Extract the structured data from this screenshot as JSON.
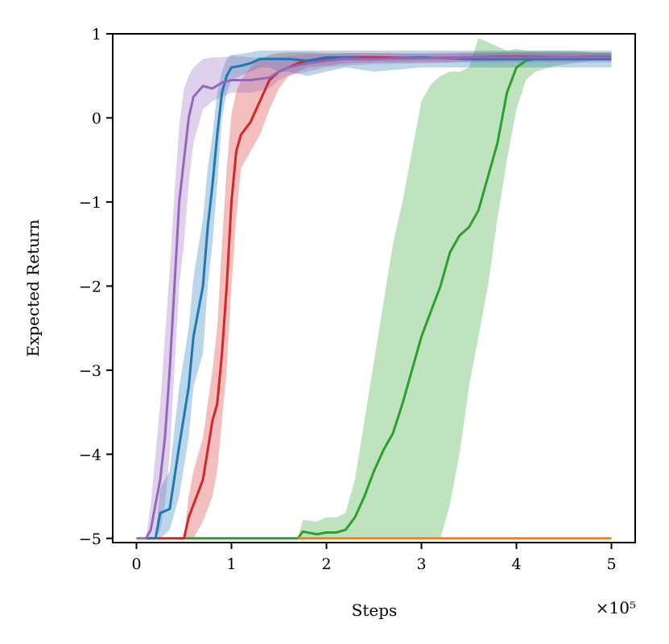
{
  "chart_data": {
    "type": "line",
    "title": "",
    "xlabel": "Steps",
    "ylabel": "Expected Return",
    "x_multiplier_label": "×10⁵",
    "xlim": [
      -0.25,
      5.25
    ],
    "ylim": [
      -5.05,
      1.0
    ],
    "xticks": [
      0,
      1,
      2,
      3,
      4,
      5
    ],
    "xtick_labels": [
      "0",
      "1",
      "2",
      "3",
      "4",
      "5"
    ],
    "yticks": [
      -5,
      -4,
      -3,
      -2,
      -1,
      0,
      1
    ],
    "ytick_labels": [
      "−5",
      "−4",
      "−3",
      "−2",
      "−1",
      "0",
      "1"
    ],
    "grid": false,
    "series": [
      {
        "color": "#2ca02c",
        "x": [
          0.45,
          1.0,
          1.5,
          1.7,
          1.75,
          1.9,
          2.0,
          2.1,
          2.2,
          2.3,
          2.4,
          2.5,
          2.6,
          2.7,
          2.8,
          2.9,
          3.0,
          3.1,
          3.2,
          3.3,
          3.4,
          3.5,
          3.6,
          3.7,
          3.8,
          3.9,
          4.0,
          4.1,
          4.2,
          4.4,
          4.6,
          4.8,
          5.0
        ],
        "y": [
          -5.0,
          -5.0,
          -5.0,
          -5.0,
          -4.92,
          -4.95,
          -4.93,
          -4.93,
          -4.9,
          -4.75,
          -4.5,
          -4.2,
          -3.95,
          -3.75,
          -3.4,
          -3.0,
          -2.6,
          -2.3,
          -2.0,
          -1.6,
          -1.4,
          -1.3,
          -1.1,
          -0.7,
          -0.3,
          0.3,
          0.6,
          0.68,
          0.7,
          0.72,
          0.72,
          0.73,
          0.73
        ],
        "lower": [
          -5.0,
          -5.0,
          -5.0,
          -5.0,
          -5.0,
          -5.0,
          -5.0,
          -5.0,
          -5.0,
          -5.0,
          -5.0,
          -5.0,
          -5.0,
          -5.0,
          -5.0,
          -5.0,
          -5.0,
          -5.0,
          -5.0,
          -4.6,
          -4.0,
          -3.2,
          -2.6,
          -2.0,
          -1.2,
          -0.5,
          0.1,
          0.45,
          0.55,
          0.62,
          0.65,
          0.68,
          0.68
        ],
        "upper": [
          -5.0,
          -5.0,
          -5.0,
          -5.0,
          -4.78,
          -4.8,
          -4.75,
          -4.75,
          -4.7,
          -4.3,
          -3.6,
          -2.9,
          -2.2,
          -1.5,
          -1.0,
          -0.4,
          0.2,
          0.4,
          0.5,
          0.55,
          0.55,
          0.6,
          0.95,
          0.9,
          0.85,
          0.8,
          0.82,
          0.8,
          0.8,
          0.8,
          0.8,
          0.78,
          0.78
        ]
      },
      {
        "color": "#ff7f0e",
        "x": [
          1.7,
          2.5,
          3.0,
          4.0,
          5.0
        ],
        "y": [
          -5.0,
          -5.0,
          -5.0,
          -5.0,
          -5.0
        ],
        "lower": [
          -5.0,
          -5.0,
          -5.0,
          -5.0,
          -5.0
        ],
        "upper": [
          -5.0,
          -5.0,
          -5.0,
          -5.0,
          -5.0
        ]
      },
      {
        "color": "#d62728",
        "x": [
          0.1,
          0.4,
          0.5,
          0.55,
          0.6,
          0.7,
          0.8,
          0.85,
          0.9,
          0.95,
          1.0,
          1.05,
          1.1,
          1.2,
          1.3,
          1.4,
          1.5,
          1.6,
          1.7,
          1.8,
          2.0,
          2.2,
          2.5,
          3.0,
          3.5,
          4.0,
          4.5,
          5.0
        ],
        "y": [
          -5.0,
          -5.0,
          -5.0,
          -4.75,
          -4.6,
          -4.3,
          -3.6,
          -3.4,
          -2.8,
          -2.0,
          -1.0,
          -0.4,
          -0.2,
          -0.05,
          0.2,
          0.45,
          0.55,
          0.6,
          0.65,
          0.68,
          0.7,
          0.72,
          0.72,
          0.71,
          0.72,
          0.73,
          0.72,
          0.72
        ],
        "lower": [
          -5.0,
          -5.0,
          -5.0,
          -5.0,
          -5.0,
          -4.8,
          -4.5,
          -4.2,
          -3.6,
          -3.0,
          -2.0,
          -1.2,
          -0.6,
          -0.4,
          -0.2,
          0.1,
          0.35,
          0.5,
          0.55,
          0.6,
          0.62,
          0.65,
          0.66,
          0.66,
          0.67,
          0.68,
          0.68,
          0.68
        ],
        "upper": [
          -5.0,
          -5.0,
          -5.0,
          -4.5,
          -4.2,
          -3.8,
          -3.0,
          -2.5,
          -1.5,
          -0.6,
          0.05,
          0.3,
          0.45,
          0.6,
          0.7,
          0.75,
          0.77,
          0.78,
          0.78,
          0.78,
          0.77,
          0.77,
          0.77,
          0.76,
          0.77,
          0.78,
          0.77,
          0.77
        ]
      },
      {
        "color": "#1f77b4",
        "x": [
          0.1,
          0.2,
          0.25,
          0.35,
          0.45,
          0.55,
          0.6,
          0.7,
          0.75,
          0.8,
          0.85,
          0.9,
          0.95,
          1.0,
          1.1,
          1.2,
          1.3,
          1.4,
          1.5,
          1.6,
          1.8,
          2.0,
          2.2,
          2.5,
          3.0,
          3.5,
          4.0,
          4.5,
          5.0
        ],
        "y": [
          -5.0,
          -5.0,
          -4.7,
          -4.65,
          -3.9,
          -3.2,
          -2.6,
          -2.0,
          -1.3,
          -0.8,
          -0.2,
          0.3,
          0.5,
          0.6,
          0.62,
          0.65,
          0.7,
          0.7,
          0.7,
          0.7,
          0.68,
          0.72,
          0.72,
          0.7,
          0.72,
          0.7,
          0.7,
          0.7,
          0.7
        ],
        "lower": [
          -5.0,
          -5.0,
          -5.0,
          -4.9,
          -4.5,
          -3.8,
          -3.2,
          -2.8,
          -2.0,
          -1.5,
          -0.8,
          0.0,
          0.3,
          0.45,
          0.5,
          0.55,
          0.6,
          0.6,
          0.55,
          0.55,
          0.5,
          0.55,
          0.6,
          0.55,
          0.6,
          0.6,
          0.6,
          0.6,
          0.6
        ],
        "upper": [
          -5.0,
          -5.0,
          -4.4,
          -4.2,
          -3.2,
          -2.5,
          -1.9,
          -1.2,
          -0.6,
          -0.2,
          0.3,
          0.55,
          0.7,
          0.75,
          0.76,
          0.78,
          0.8,
          0.8,
          0.8,
          0.8,
          0.8,
          0.8,
          0.8,
          0.8,
          0.8,
          0.8,
          0.8,
          0.8,
          0.8
        ]
      },
      {
        "color": "#9467bd",
        "x": [
          0.0,
          0.1,
          0.15,
          0.2,
          0.25,
          0.3,
          0.35,
          0.4,
          0.45,
          0.5,
          0.55,
          0.6,
          0.7,
          0.8,
          0.9,
          1.0,
          1.2,
          1.4,
          1.5,
          1.6,
          1.8,
          2.0,
          2.2,
          2.5,
          3.0,
          3.5,
          4.0,
          4.5,
          5.0
        ],
        "y": [
          -5.0,
          -5.0,
          -4.9,
          -4.6,
          -4.3,
          -3.8,
          -3.0,
          -2.0,
          -1.0,
          -0.5,
          0.0,
          0.25,
          0.38,
          0.35,
          0.42,
          0.45,
          0.45,
          0.48,
          0.55,
          0.6,
          0.65,
          0.68,
          0.7,
          0.7,
          0.71,
          0.72,
          0.72,
          0.72,
          0.72
        ],
        "lower": [
          -5.0,
          -5.0,
          -5.0,
          -5.0,
          -4.9,
          -4.6,
          -4.0,
          -3.0,
          -2.0,
          -1.5,
          -0.8,
          -0.3,
          0.1,
          0.2,
          0.25,
          0.3,
          0.3,
          0.35,
          0.45,
          0.5,
          0.55,
          0.6,
          0.62,
          0.64,
          0.65,
          0.66,
          0.66,
          0.66,
          0.66
        ],
        "upper": [
          -5.0,
          -5.0,
          -4.6,
          -4.0,
          -3.4,
          -2.6,
          -1.8,
          -0.9,
          -0.1,
          0.35,
          0.5,
          0.6,
          0.7,
          0.72,
          0.72,
          0.74,
          0.72,
          0.72,
          0.72,
          0.74,
          0.76,
          0.76,
          0.77,
          0.77,
          0.77,
          0.78,
          0.78,
          0.78,
          0.78
        ]
      }
    ]
  }
}
